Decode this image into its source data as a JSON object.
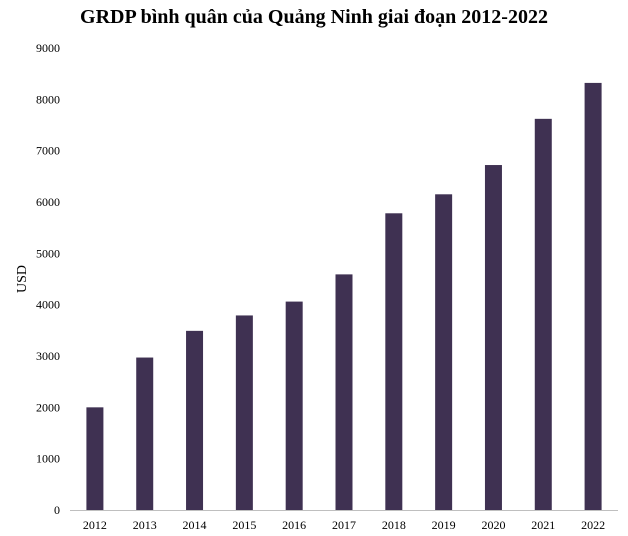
{
  "chart_data": {
    "type": "bar",
    "title": "GRDP bình quân của Quảng Ninh giai đoạn 2012-2022",
    "xlabel": "",
    "ylabel": "USD",
    "categories": [
      "2012",
      "2013",
      "2014",
      "2015",
      "2016",
      "2017",
      "2018",
      "2019",
      "2020",
      "2021",
      "2022"
    ],
    "values": [
      2000,
      2970,
      3490,
      3790,
      4060,
      4590,
      5780,
      6150,
      6720,
      7620,
      8320
    ],
    "ylim": [
      0,
      9000
    ],
    "yticks": [
      "0",
      "1000",
      "2000",
      "3000",
      "4000",
      "5000",
      "6000",
      "7000",
      "8000",
      "9000"
    ],
    "grid": false,
    "legend": "none",
    "bar_color": "#3f3152"
  }
}
